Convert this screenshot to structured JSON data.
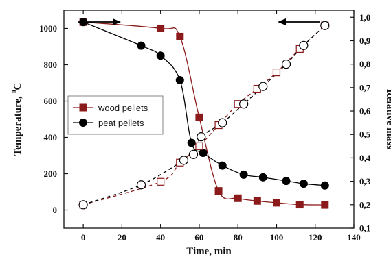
{
  "chart_data": {
    "type": "line",
    "xlabel": "Time, min",
    "ylabel_left": "Temperature, ",
    "ylabel_left_sup": "0",
    "ylabel_left_unit": "C",
    "ylabel_right": "Relative mass",
    "xlim": [
      -10,
      140
    ],
    "ylim_left": [
      -100,
      1100
    ],
    "ylim_right": [
      0.1,
      1.03
    ],
    "x_ticks": [
      "0",
      "20",
      "40",
      "60",
      "80",
      "100",
      "120",
      "140"
    ],
    "y_left_ticks": [
      "0",
      "200",
      "400",
      "600",
      "800",
      "1000"
    ],
    "y_right_ticks": [
      "0,1",
      "0,2",
      "0,3",
      "0,4",
      "0,5",
      "0,6",
      "0,7",
      "0,8",
      "0,9",
      "1,0"
    ],
    "grid": false,
    "legend_position": "middle-left",
    "colors": {
      "wood": "#8b1a1a",
      "peat": "#000000"
    },
    "series": [
      {
        "name": "wood pellets",
        "role": "temperature",
        "axis": "left",
        "marker": "filled-square",
        "x": [
          0,
          40,
          50,
          60,
          70,
          80,
          90,
          100,
          112,
          125
        ],
        "y": [
          1035,
          1000,
          955,
          510,
          105,
          65,
          50,
          40,
          30,
          28
        ]
      },
      {
        "name": "peat pellets",
        "role": "temperature",
        "axis": "left",
        "marker": "filled-circle",
        "x": [
          0,
          30,
          40,
          50,
          56,
          62,
          72,
          83,
          93,
          105,
          114,
          125
        ],
        "y": [
          1035,
          905,
          850,
          715,
          370,
          315,
          245,
          195,
          180,
          160,
          145,
          135
        ]
      },
      {
        "role": "relative-mass",
        "axis": "right",
        "marker": "open-square",
        "color": "wood",
        "x": [
          0,
          40,
          50,
          60,
          70,
          80,
          90,
          100,
          112,
          125
        ],
        "y": [
          0.2,
          0.298,
          0.38,
          0.45,
          0.54,
          0.63,
          0.695,
          0.765,
          0.865,
          0.965
        ]
      },
      {
        "role": "relative-mass",
        "axis": "right",
        "marker": "open-circle",
        "color": "peat",
        "x": [
          0,
          30,
          52,
          57,
          61,
          72,
          83,
          93,
          105,
          114,
          125
        ],
        "y": [
          0.2,
          0.285,
          0.39,
          0.415,
          0.49,
          0.55,
          0.63,
          0.705,
          0.8,
          0.88,
          0.965
        ]
      }
    ],
    "annotations": [
      {
        "type": "arrow",
        "direction": "right",
        "meaning": "temperature curves use left axis"
      },
      {
        "type": "arrow",
        "direction": "left",
        "meaning": "relative mass curves use right axis"
      }
    ]
  }
}
